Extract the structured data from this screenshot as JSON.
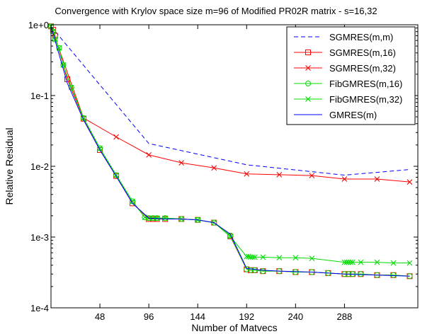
{
  "chart_data": {
    "type": "line",
    "title": "Convergence with Krylov space size m=96 of Modified PR02R matrix - s=16,32",
    "xlabel": "Number of Matvecs",
    "ylabel": "Relative Residual",
    "xlim": [
      0,
      360
    ],
    "ylim": [
      0.0001,
      1
    ],
    "yscale": "log",
    "x_ticks": [
      48,
      96,
      144,
      192,
      240,
      288
    ],
    "x_tick_labels": [
      "48",
      "96",
      "144",
      "192",
      "240",
      "288"
    ],
    "y_ticks": [
      1,
      0.1,
      0.01,
      0.001,
      0.0001
    ],
    "y_tick_labels": [
      "1e+0",
      "1e-1",
      "1e-2",
      "1e-3",
      "1e-4"
    ],
    "grid": false,
    "legend_position": "top-right",
    "series": [
      {
        "name": "SGMRES(m,m)",
        "color": "#0000ff",
        "line": "dashed",
        "marker": "none",
        "x": [
          0,
          96,
          192,
          288,
          352
        ],
        "y": [
          0.95,
          0.021,
          0.0105,
          0.0075,
          0.009
        ]
      },
      {
        "name": "SGMRES(m,16)",
        "color": "#ff0000",
        "line": "solid",
        "marker": "square",
        "x": [
          0,
          2,
          4,
          16,
          32,
          48,
          64,
          80,
          96,
          100,
          104,
          112,
          128,
          144,
          160,
          176,
          192,
          196,
          200,
          208,
          224,
          240,
          256,
          272,
          288,
          292,
          296,
          304,
          320,
          336,
          352
        ],
        "y": [
          0.95,
          0.85,
          0.7,
          0.17,
          0.047,
          0.017,
          0.0073,
          0.003,
          0.0018,
          0.0018,
          0.0018,
          0.0018,
          0.0018,
          0.00175,
          0.0016,
          0.00102,
          0.00035,
          0.00034,
          0.00034,
          0.00033,
          0.00033,
          0.00032,
          0.00032,
          0.00031,
          0.0003,
          0.0003,
          0.0003,
          0.0003,
          0.00029,
          0.00029,
          0.00028
        ]
      },
      {
        "name": "SGMRES(m,32)",
        "color": "#ff0000",
        "line": "solid",
        "marker": "x",
        "x": [
          0,
          32,
          64,
          96,
          128,
          160,
          192,
          224,
          256,
          288,
          320,
          352
        ],
        "y": [
          0.95,
          0.048,
          0.026,
          0.0145,
          0.0112,
          0.0095,
          0.0078,
          0.0076,
          0.0074,
          0.0066,
          0.0066,
          0.006
        ]
      },
      {
        "name": "FibGMRES(m,16)",
        "color": "#00dd00",
        "line": "solid",
        "marker": "circle",
        "x": [
          0,
          2,
          4,
          8,
          12,
          20,
          32,
          48,
          64,
          80,
          92,
          96,
          100,
          104,
          112,
          128,
          144,
          160,
          176,
          192,
          196,
          200,
          208,
          224,
          240,
          256,
          272,
          288,
          292,
          296,
          304,
          320,
          336,
          352
        ],
        "y": [
          0.95,
          0.8,
          0.62,
          0.47,
          0.27,
          0.13,
          0.048,
          0.018,
          0.0075,
          0.0032,
          0.0019,
          0.00185,
          0.00185,
          0.00185,
          0.00185,
          0.0018,
          0.00175,
          0.0016,
          0.00105,
          0.00035,
          0.00034,
          0.00034,
          0.00033,
          0.00033,
          0.00032,
          0.00032,
          0.00031,
          0.0003,
          0.0003,
          0.0003,
          0.0003,
          0.00029,
          0.00029,
          0.00028
        ]
      },
      {
        "name": "FibGMRES(m,32)",
        "color": "#00dd00",
        "line": "solid",
        "marker": "x",
        "x": [
          0,
          2,
          4,
          8,
          12,
          20,
          32,
          48,
          64,
          80,
          92,
          96,
          100,
          104,
          112,
          128,
          144,
          160,
          176,
          192,
          194,
          196,
          198,
          200,
          208,
          224,
          240,
          256,
          288,
          290,
          292,
          294,
          296,
          304,
          320,
          336,
          352
        ],
        "y": [
          0.95,
          0.8,
          0.62,
          0.47,
          0.27,
          0.13,
          0.048,
          0.018,
          0.0075,
          0.0032,
          0.0019,
          0.00185,
          0.00185,
          0.00185,
          0.00185,
          0.0018,
          0.00175,
          0.0016,
          0.00102,
          0.00053,
          0.00053,
          0.00052,
          0.00052,
          0.00052,
          0.00052,
          0.00051,
          0.00051,
          0.0005,
          0.00044,
          0.00044,
          0.00044,
          0.00044,
          0.00044,
          0.00044,
          0.00044,
          0.00043,
          0.00043
        ]
      },
      {
        "name": "GMRES(m)",
        "color": "#0000ff",
        "line": "solid",
        "marker": "none",
        "x": [
          0,
          4,
          16,
          32,
          48,
          64,
          80,
          96,
          112,
          128,
          144,
          160,
          176,
          192,
          208,
          224,
          256,
          288,
          320,
          352
        ],
        "y": [
          0.95,
          0.6,
          0.15,
          0.045,
          0.017,
          0.0072,
          0.003,
          0.00185,
          0.0018,
          0.0018,
          0.00175,
          0.0016,
          0.0011,
          0.00036,
          0.00034,
          0.00033,
          0.00032,
          0.0003,
          0.00029,
          0.00028
        ]
      }
    ]
  }
}
